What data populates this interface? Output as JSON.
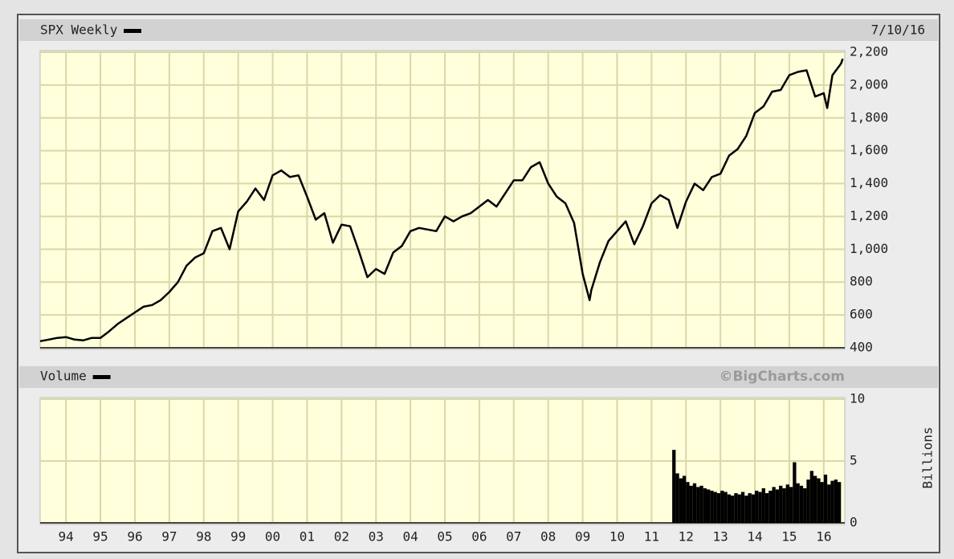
{
  "chart_data": [
    {
      "type": "line",
      "date": "7/10/16",
      "x": [
        1993.25,
        1993.5,
        1993.75,
        1994,
        1994.25,
        1994.5,
        1994.75,
        1995,
        1995.25,
        1995.5,
        1995.75,
        1996,
        1996.25,
        1996.5,
        1996.75,
        1997,
        1997.25,
        1997.5,
        1997.75,
        1998,
        1998.25,
        1998.5,
        1998.75,
        1999,
        1999.25,
        1999.5,
        1999.75,
        2000,
        2000.25,
        2000.5,
        2000.75,
        2001,
        2001.25,
        2001.5,
        2001.75,
        2002,
        2002.25,
        2002.5,
        2002.75,
        2003,
        2003.25,
        2003.5,
        2003.75,
        2004,
        2004.25,
        2004.5,
        2004.75,
        2005,
        2005.25,
        2005.5,
        2005.75,
        2006,
        2006.25,
        2006.5,
        2006.75,
        2007,
        2007.25,
        2007.5,
        2007.75,
        2008,
        2008.25,
        2008.5,
        2008.75,
        2009,
        2009.2,
        2009.25,
        2009.5,
        2009.75,
        2010,
        2010.25,
        2010.5,
        2010.75,
        2011,
        2011.25,
        2011.5,
        2011.75,
        2012,
        2012.25,
        2012.5,
        2012.75,
        2013,
        2013.25,
        2013.5,
        2013.75,
        2014,
        2014.25,
        2014.5,
        2014.75,
        2015,
        2015.25,
        2015.5,
        2015.75,
        2016,
        2016.1,
        2016.25,
        2016.5,
        2016.55
      ],
      "series": [
        {
          "name": "SPX Weekly",
          "color": "#000000",
          "values": [
            440,
            450,
            460,
            465,
            450,
            445,
            460,
            460,
            500,
            545,
            580,
            615,
            650,
            660,
            690,
            740,
            800,
            900,
            950,
            975,
            1110,
            1130,
            1000,
            1230,
            1290,
            1370,
            1300,
            1450,
            1480,
            1440,
            1450,
            1320,
            1180,
            1220,
            1040,
            1150,
            1140,
            990,
            830,
            880,
            850,
            980,
            1020,
            1110,
            1130,
            1120,
            1110,
            1200,
            1170,
            1200,
            1220,
            1260,
            1300,
            1260,
            1340,
            1420,
            1420,
            1500,
            1530,
            1400,
            1320,
            1280,
            1160,
            850,
            690,
            750,
            920,
            1050,
            1110,
            1170,
            1030,
            1140,
            1280,
            1330,
            1300,
            1130,
            1290,
            1400,
            1360,
            1440,
            1460,
            1570,
            1610,
            1690,
            1830,
            1870,
            1960,
            1970,
            2060,
            2080,
            2090,
            1930,
            1950,
            1860,
            2060,
            2130,
            2160
          ]
        }
      ],
      "xlim": [
        1993.25,
        2016.61
      ],
      "xticks": [
        1994,
        1995,
        1996,
        1997,
        1998,
        1999,
        2000,
        2001,
        2002,
        2003,
        2004,
        2005,
        2006,
        2007,
        2008,
        2009,
        2010,
        2011,
        2012,
        2013,
        2014,
        2015,
        2016
      ],
      "ylim": [
        400,
        2200
      ],
      "yticks": [
        400,
        600,
        800,
        {
          "value": 1000,
          "label": "1,000"
        },
        {
          "value": 1200,
          "label": "1,200"
        },
        {
          "value": 1400,
          "label": "1,400"
        },
        {
          "value": 1600,
          "label": "1,600"
        },
        {
          "value": 1800,
          "label": "1,800"
        },
        {
          "value": 2000,
          "label": "2,000"
        },
        {
          "value": 2200,
          "label": "2,200"
        }
      ],
      "grid": true
    },
    {
      "type": "bar",
      "annotation": "©BigCharts.com",
      "y_label": "Billions",
      "x": [
        2011.65,
        2011.75,
        2011.85,
        2011.95,
        2012.05,
        2012.15,
        2012.25,
        2012.35,
        2012.45,
        2012.55,
        2012.65,
        2012.75,
        2012.85,
        2012.95,
        2013.05,
        2013.15,
        2013.25,
        2013.35,
        2013.45,
        2013.55,
        2013.65,
        2013.75,
        2013.85,
        2013.95,
        2014.05,
        2014.15,
        2014.25,
        2014.35,
        2014.45,
        2014.55,
        2014.65,
        2014.75,
        2014.85,
        2014.95,
        2015.05,
        2015.15,
        2015.25,
        2015.35,
        2015.45,
        2015.55,
        2015.65,
        2015.75,
        2015.85,
        2015.95,
        2016.05,
        2016.15,
        2016.25,
        2016.35,
        2016.45
      ],
      "series": [
        {
          "name": "Volume",
          "color": "#000000",
          "values": [
            5.9,
            4.0,
            3.6,
            3.8,
            3.3,
            3.0,
            3.2,
            2.9,
            3.0,
            2.8,
            2.7,
            2.6,
            2.5,
            2.4,
            2.6,
            2.5,
            2.3,
            2.2,
            2.4,
            2.3,
            2.5,
            2.2,
            2.4,
            2.3,
            2.6,
            2.5,
            2.8,
            2.4,
            2.6,
            2.9,
            2.7,
            3.0,
            2.8,
            3.1,
            2.9,
            4.9,
            3.2,
            3.0,
            2.8,
            3.5,
            4.2,
            3.8,
            3.6,
            3.3,
            3.9,
            3.1,
            3.4,
            3.5,
            3.3
          ]
        }
      ],
      "xlim": [
        1993.25,
        2016.61
      ],
      "xticks": [
        {
          "value": 1994,
          "label": "94"
        },
        {
          "value": 1995,
          "label": "95"
        },
        {
          "value": 1996,
          "label": "96"
        },
        {
          "value": 1997,
          "label": "97"
        },
        {
          "value": 1998,
          "label": "98"
        },
        {
          "value": 1999,
          "label": "99"
        },
        {
          "value": 2000,
          "label": "00"
        },
        {
          "value": 2001,
          "label": "01"
        },
        {
          "value": 2002,
          "label": "02"
        },
        {
          "value": 2003,
          "label": "03"
        },
        {
          "value": 2004,
          "label": "04"
        },
        {
          "value": 2005,
          "label": "05"
        },
        {
          "value": 2006,
          "label": "06"
        },
        {
          "value": 2007,
          "label": "07"
        },
        {
          "value": 2008,
          "label": "08"
        },
        {
          "value": 2009,
          "label": "09"
        },
        {
          "value": 2010,
          "label": "10"
        },
        {
          "value": 2011,
          "label": "11"
        },
        {
          "value": 2012,
          "label": "12"
        },
        {
          "value": 2013,
          "label": "13"
        },
        {
          "value": 2014,
          "label": "14"
        },
        {
          "value": 2015,
          "label": "15"
        },
        {
          "value": 2016,
          "label": "16"
        }
      ],
      "ylim": [
        0,
        10
      ],
      "yticks": [
        0,
        5,
        10
      ],
      "grid": true
    }
  ]
}
